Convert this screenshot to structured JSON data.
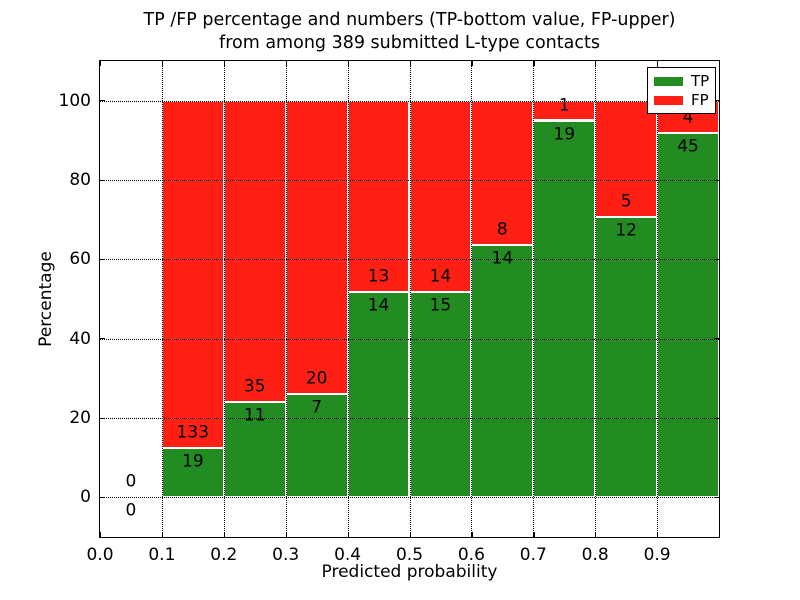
{
  "chart_data": {
    "type": "bar",
    "stacked": true,
    "title_line1": "TP /FP percentage and numbers (TP-bottom value, FP-upper)",
    "title_line2": "from among 389 submitted L-type contacts",
    "xlabel": "Predicted probability",
    "ylabel": "Percentage",
    "total_submitted_contacts": 389,
    "xlim": [
      0.0,
      1.0
    ],
    "ylim": [
      -10,
      110
    ],
    "grid": "dotted black, horizontal at y-ticks and vertical at x-ticks",
    "legend_position": "upper right",
    "xtick_labels": [
      "0.0",
      "0.1",
      "0.2",
      "0.3",
      "0.4",
      "0.5",
      "0.6",
      "0.7",
      "0.8",
      "0.9"
    ],
    "yticks": [
      0,
      20,
      40,
      60,
      80,
      100
    ],
    "ytick_labels": [
      "0",
      "20",
      "40",
      "60",
      "80",
      "100"
    ],
    "colors": {
      "tp": "#228b22",
      "fp": "#ff2015",
      "grid": "#000000",
      "bar_edge": "#ffffff",
      "text": "#000000"
    },
    "legend": [
      {
        "label": "TP",
        "key": "tp"
      },
      {
        "label": "FP",
        "key": "fp"
      }
    ],
    "bins": [
      {
        "range": [
          0.0,
          0.1
        ],
        "tp": 0,
        "fp": 0
      },
      {
        "range": [
          0.1,
          0.2
        ],
        "tp": 19,
        "fp": 133
      },
      {
        "range": [
          0.2,
          0.3
        ],
        "tp": 11,
        "fp": 35
      },
      {
        "range": [
          0.3,
          0.4
        ],
        "tp": 7,
        "fp": 20
      },
      {
        "range": [
          0.4,
          0.5
        ],
        "tp": 14,
        "fp": 13
      },
      {
        "range": [
          0.5,
          0.6
        ],
        "tp": 15,
        "fp": 14
      },
      {
        "range": [
          0.6,
          0.7
        ],
        "tp": 14,
        "fp": 8
      },
      {
        "range": [
          0.7,
          0.8
        ],
        "tp": 19,
        "fp": 1
      },
      {
        "range": [
          0.8,
          0.9
        ],
        "tp": 12,
        "fp": 5
      },
      {
        "range": [
          0.9,
          1.0
        ],
        "tp": 45,
        "fp": 4
      }
    ]
  }
}
